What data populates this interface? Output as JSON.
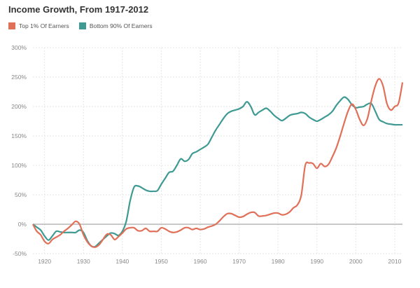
{
  "chart_data": {
    "type": "line",
    "title": "Income Growth, From 1917-2012",
    "xlabel": "",
    "ylabel": "",
    "xlim": [
      1917,
      2012
    ],
    "ylim": [
      -50,
      300
    ],
    "x_ticks": [
      "1920",
      "1930",
      "1940",
      "1950",
      "1960",
      "1970",
      "1980",
      "1990",
      "2000",
      "2010"
    ],
    "y_ticks": [
      "300%",
      "250%",
      "200%",
      "150%",
      "100%",
      "50%",
      "0%",
      "-50%"
    ],
    "grid": true,
    "legend_position": "top-left",
    "series": [
      {
        "name": "Top 1% Of Earners",
        "color": "#e07058",
        "points": [
          [
            1917,
            0
          ],
          [
            1918,
            -12
          ],
          [
            1919,
            -18
          ],
          [
            1920,
            -29
          ],
          [
            1921,
            -33
          ],
          [
            1922,
            -26
          ],
          [
            1923,
            -22
          ],
          [
            1924,
            -18
          ],
          [
            1925,
            -12
          ],
          [
            1926,
            -7
          ],
          [
            1927,
            -1
          ],
          [
            1928,
            5
          ],
          [
            1929,
            0
          ],
          [
            1930,
            -18
          ],
          [
            1931,
            -30
          ],
          [
            1932,
            -37
          ],
          [
            1933,
            -39
          ],
          [
            1934,
            -35
          ],
          [
            1935,
            -26
          ],
          [
            1936,
            -17
          ],
          [
            1937,
            -18
          ],
          [
            1938,
            -26
          ],
          [
            1939,
            -21
          ],
          [
            1940,
            -15
          ],
          [
            1941,
            -8
          ],
          [
            1942,
            -6
          ],
          [
            1943,
            -6
          ],
          [
            1944,
            -11
          ],
          [
            1945,
            -11
          ],
          [
            1946,
            -7
          ],
          [
            1947,
            -12
          ],
          [
            1948,
            -12
          ],
          [
            1949,
            -12
          ],
          [
            1950,
            -6
          ],
          [
            1951,
            -8
          ],
          [
            1952,
            -12
          ],
          [
            1953,
            -14
          ],
          [
            1954,
            -13
          ],
          [
            1955,
            -10
          ],
          [
            1956,
            -6
          ],
          [
            1957,
            -6
          ],
          [
            1958,
            -9
          ],
          [
            1959,
            -7
          ],
          [
            1960,
            -9
          ],
          [
            1961,
            -8
          ],
          [
            1962,
            -5
          ],
          [
            1963,
            -3
          ],
          [
            1964,
            0
          ],
          [
            1965,
            6
          ],
          [
            1966,
            13
          ],
          [
            1967,
            18
          ],
          [
            1968,
            18
          ],
          [
            1969,
            15
          ],
          [
            1970,
            12
          ],
          [
            1971,
            13
          ],
          [
            1972,
            17
          ],
          [
            1973,
            20
          ],
          [
            1974,
            20
          ],
          [
            1975,
            14
          ],
          [
            1976,
            14
          ],
          [
            1977,
            15
          ],
          [
            1978,
            17
          ],
          [
            1979,
            19
          ],
          [
            1980,
            19
          ],
          [
            1981,
            16
          ],
          [
            1982,
            17
          ],
          [
            1983,
            21
          ],
          [
            1984,
            28
          ],
          [
            1985,
            33
          ],
          [
            1986,
            50
          ],
          [
            1987,
            100
          ],
          [
            1988,
            104
          ],
          [
            1989,
            103
          ],
          [
            1990,
            95
          ],
          [
            1991,
            103
          ],
          [
            1992,
            98
          ],
          [
            1993,
            102
          ],
          [
            1994,
            115
          ],
          [
            1995,
            130
          ],
          [
            1996,
            150
          ],
          [
            1997,
            172
          ],
          [
            1998,
            192
          ],
          [
            1999,
            204
          ],
          [
            2000,
            195
          ],
          [
            2001,
            178
          ],
          [
            2002,
            168
          ],
          [
            2003,
            180
          ],
          [
            2004,
            210
          ],
          [
            2005,
            235
          ],
          [
            2006,
            247
          ],
          [
            2007,
            235
          ],
          [
            2008,
            205
          ],
          [
            2009,
            194
          ],
          [
            2010,
            200
          ],
          [
            2011,
            206
          ],
          [
            2012,
            241
          ]
        ]
      },
      {
        "name": "Bottom 90% Of Earners",
        "color": "#3e9a92",
        "points": [
          [
            1917,
            0
          ],
          [
            1918,
            -5
          ],
          [
            1919,
            -10
          ],
          [
            1920,
            -20
          ],
          [
            1921,
            -27
          ],
          [
            1922,
            -20
          ],
          [
            1923,
            -12
          ],
          [
            1924,
            -13
          ],
          [
            1925,
            -14
          ],
          [
            1926,
            -14
          ],
          [
            1927,
            -14
          ],
          [
            1928,
            -14
          ],
          [
            1929,
            -10
          ],
          [
            1930,
            -14
          ],
          [
            1931,
            -28
          ],
          [
            1932,
            -37
          ],
          [
            1933,
            -38
          ],
          [
            1934,
            -32
          ],
          [
            1935,
            -26
          ],
          [
            1936,
            -20
          ],
          [
            1937,
            -15
          ],
          [
            1938,
            -16
          ],
          [
            1939,
            -19
          ],
          [
            1940,
            -12
          ],
          [
            1941,
            5
          ],
          [
            1942,
            40
          ],
          [
            1943,
            63
          ],
          [
            1944,
            65
          ],
          [
            1945,
            62
          ],
          [
            1946,
            58
          ],
          [
            1947,
            56
          ],
          [
            1948,
            56
          ],
          [
            1949,
            57
          ],
          [
            1950,
            68
          ],
          [
            1951,
            78
          ],
          [
            1952,
            88
          ],
          [
            1953,
            90
          ],
          [
            1954,
            100
          ],
          [
            1955,
            111
          ],
          [
            1956,
            107
          ],
          [
            1957,
            110
          ],
          [
            1958,
            120
          ],
          [
            1959,
            123
          ],
          [
            1960,
            127
          ],
          [
            1961,
            131
          ],
          [
            1962,
            136
          ],
          [
            1963,
            148
          ],
          [
            1964,
            160
          ],
          [
            1965,
            170
          ],
          [
            1966,
            180
          ],
          [
            1967,
            188
          ],
          [
            1968,
            192
          ],
          [
            1969,
            194
          ],
          [
            1970,
            196
          ],
          [
            1971,
            200
          ],
          [
            1972,
            208
          ],
          [
            1973,
            200
          ],
          [
            1974,
            186
          ],
          [
            1975,
            190
          ],
          [
            1976,
            194
          ],
          [
            1977,
            197
          ],
          [
            1978,
            192
          ],
          [
            1979,
            185
          ],
          [
            1980,
            180
          ],
          [
            1981,
            176
          ],
          [
            1982,
            180
          ],
          [
            1983,
            185
          ],
          [
            1984,
            187
          ],
          [
            1985,
            188
          ],
          [
            1986,
            190
          ],
          [
            1987,
            188
          ],
          [
            1988,
            182
          ],
          [
            1989,
            178
          ],
          [
            1990,
            175
          ],
          [
            1991,
            178
          ],
          [
            1992,
            182
          ],
          [
            1993,
            186
          ],
          [
            1994,
            192
          ],
          [
            1995,
            202
          ],
          [
            1996,
            210
          ],
          [
            1997,
            216
          ],
          [
            1998,
            212
          ],
          [
            1999,
            203
          ],
          [
            2000,
            198
          ],
          [
            2001,
            199
          ],
          [
            2002,
            200
          ],
          [
            2003,
            204
          ],
          [
            2004,
            205
          ],
          [
            2005,
            192
          ],
          [
            2006,
            178
          ],
          [
            2007,
            174
          ],
          [
            2008,
            171
          ],
          [
            2009,
            170
          ],
          [
            2010,
            169
          ],
          [
            2011,
            169
          ],
          [
            2012,
            169
          ]
        ]
      }
    ]
  }
}
